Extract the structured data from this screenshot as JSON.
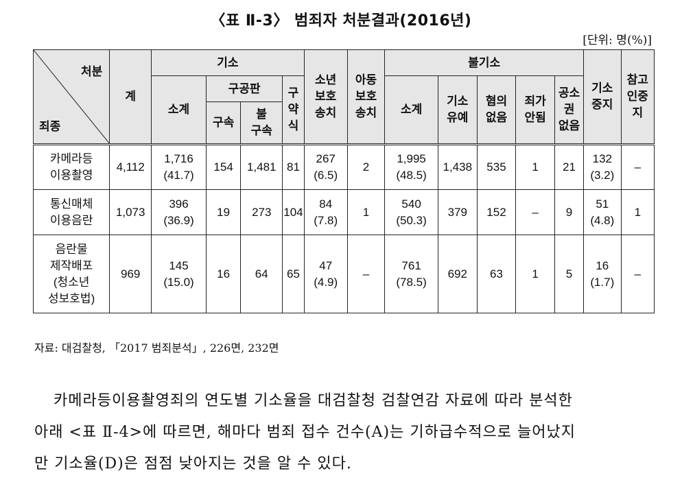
{
  "title": "〈표  Ⅱ-3〉 범죄자 처분결과(2016년)",
  "unit": "[단위: 명(%)]",
  "table": {
    "corner_top": "처분",
    "corner_bottom": "죄종",
    "headers": {
      "total": "계",
      "prosecution": "기소",
      "prosecution_subtotal": "소계",
      "public_trial": "구공판",
      "detained": "구속",
      "not_detained": "불\n구속",
      "summary": "구\n약\n식",
      "juvenile": "소년\n보호\n송치",
      "child": "아동\n보호\n송치",
      "non_prosecution": "불기소",
      "np_subtotal": "소계",
      "suspended": "기소\n유예",
      "no_suspicion": "혐의\n없음",
      "not_crime": "죄가\n안됨",
      "no_right": "공소\n권\n없음",
      "stopped": "기소\n중지",
      "witness_stopped": "참고\n인중\n지"
    },
    "rows": [
      {
        "name": "카메라등\n이용촬영",
        "total": "4,112",
        "pros_sub": "1,716\n(41.7)",
        "detained": "154",
        "not_detained": "1,481",
        "summary": "81",
        "juvenile": "267\n(6.5)",
        "child": "2",
        "np_sub": "1,995\n(48.5)",
        "suspended": "1,438",
        "no_suspicion": "535",
        "not_crime": "1",
        "no_right": "21",
        "stopped": "132\n(3.2)",
        "witness": "–"
      },
      {
        "name": "통신매체\n이용음란",
        "total": "1,073",
        "pros_sub": "396\n(36.9)",
        "detained": "19",
        "not_detained": "273",
        "summary": "104",
        "juvenile": "84\n(7.8)",
        "child": "1",
        "np_sub": "540\n(50.3)",
        "suspended": "379",
        "no_suspicion": "152",
        "not_crime": "–",
        "no_right": "9",
        "stopped": "51\n(4.8)",
        "witness": "1"
      },
      {
        "name": "음란물\n제작배포\n(청소년\n성보호법)",
        "total": "969",
        "pros_sub": "145\n(15.0)",
        "detained": "16",
        "not_detained": "64",
        "summary": "65",
        "juvenile": "47\n(4.9)",
        "child": "–",
        "np_sub": "761\n(78.5)",
        "suspended": "692",
        "no_suspicion": "63",
        "not_crime": "1",
        "no_right": "5",
        "stopped": "16\n(1.7)",
        "witness": "–"
      }
    ]
  },
  "source": "자료: 대검찰청, 「2017 범죄분석」, 226면, 232면",
  "paragraph": [
    "카메라등이용촬영죄의 연도별 기소율을 대검찰청 검찰연감 자료에 따라 분석한",
    "아래 <표 Ⅱ-4>에 따르면, 해마다 범죄 접수 건수(A)는 기하급수적으로 늘어났지",
    "만 기소율(D)은 점점 낮아지는 것을 알 수 있다."
  ]
}
